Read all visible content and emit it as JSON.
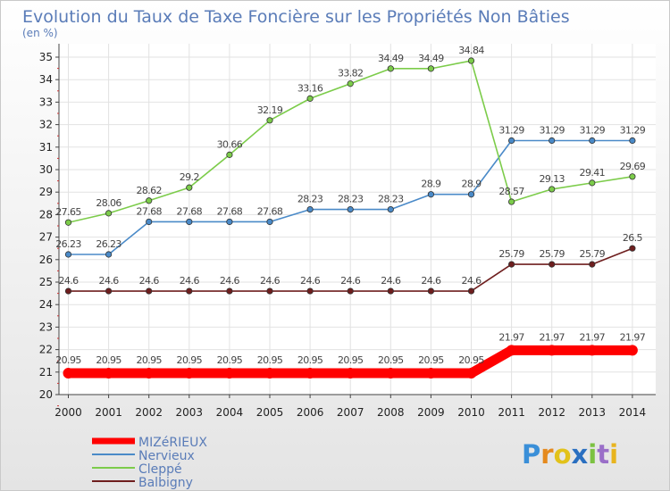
{
  "chart_data": {
    "type": "line",
    "title": "Evolution du Taux de Taxe Foncière sur les Propriétés Non Bâties",
    "subtitle": "(en %)",
    "xlabel": "",
    "ylabel": "(en %)",
    "ylim": [
      20,
      35
    ],
    "grid": true,
    "legend_position": "bottom-left",
    "x": [
      2000,
      2001,
      2002,
      2003,
      2004,
      2005,
      2006,
      2007,
      2008,
      2009,
      2010,
      2011,
      2012,
      2013,
      2014
    ],
    "y_ticks": [
      20,
      21,
      22,
      23,
      24,
      25,
      26,
      27,
      28,
      29,
      30,
      31,
      32,
      33,
      34,
      35
    ],
    "series": [
      {
        "name": "MIZéRIEUX",
        "color": "#ff0000",
        "values": [
          20.95,
          20.95,
          20.95,
          20.95,
          20.95,
          20.95,
          20.95,
          20.95,
          20.95,
          20.95,
          20.95,
          21.97,
          21.97,
          21.97,
          21.97
        ],
        "labels": [
          "20.95",
          "20.95",
          "20.95",
          "20.95",
          "20.95",
          "20.95",
          "20.95",
          "20.95",
          "20.95",
          "20.95",
          "20.95",
          "21.97",
          "21.97",
          "21.97",
          "21.97"
        ]
      },
      {
        "name": "Nervieux",
        "color": "#4a8ac8",
        "values": [
          26.23,
          26.23,
          27.68,
          27.68,
          27.68,
          27.68,
          28.23,
          28.23,
          28.23,
          28.9,
          28.9,
          31.29,
          31.29,
          31.29,
          31.29
        ],
        "labels": [
          "26.23",
          "26.23",
          "27.68",
          "27.68",
          "27.68",
          "27.68",
          "28.23",
          "28.23",
          "28.23",
          "28.9",
          "28.9",
          "31.29",
          "31.29",
          "31.29",
          "31.29"
        ]
      },
      {
        "name": "Cleppé",
        "color": "#7ccc4a",
        "values": [
          27.65,
          28.06,
          28.62,
          29.2,
          30.66,
          32.19,
          33.16,
          33.82,
          34.49,
          34.49,
          34.84,
          28.57,
          29.13,
          29.41,
          29.69
        ],
        "labels": [
          "27.65",
          "28.06",
          "28.62",
          "29.2",
          "30.66",
          "32.19",
          "33.16",
          "33.82",
          "34.49",
          "34.49",
          "34.84",
          "28.57",
          "29.13",
          "29.41",
          "29.69"
        ]
      },
      {
        "name": "Balbigny",
        "color": "#6e1e1e",
        "values": [
          24.6,
          24.6,
          24.6,
          24.6,
          24.6,
          24.6,
          24.6,
          24.6,
          24.6,
          24.6,
          24.6,
          25.79,
          25.79,
          25.79,
          26.5
        ],
        "labels": [
          "24.6",
          "24.6",
          "24.6",
          "24.6",
          "24.6",
          "24.6",
          "24.6",
          "24.6",
          "24.6",
          "24.6",
          "24.6",
          "25.79",
          "25.79",
          "25.79",
          "26.5"
        ]
      }
    ]
  },
  "logo": {
    "letters": [
      "P",
      "r",
      "o",
      "x",
      "i",
      "t",
      "i"
    ],
    "colors": [
      "#3a8fd8",
      "#e58a1e",
      "#e2c21a",
      "#2a6fc0",
      "#7cc242",
      "#9a6fc8",
      "#e8b41e"
    ]
  }
}
